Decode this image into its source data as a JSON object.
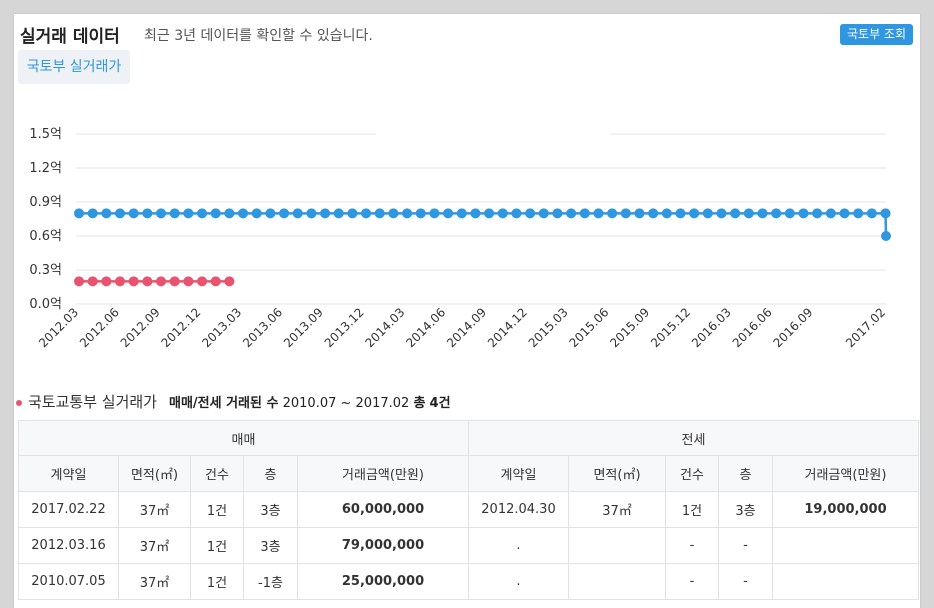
{
  "header": {
    "title": "실거래 데이터",
    "subtitle": "최근 3년 데이터를 확인할 수 있습니다.",
    "lookup_button": "국토부 조회",
    "tab_label": "국토부 실거래가"
  },
  "colors": {
    "sale": "#2f97e0",
    "jeonse": "#e8546f",
    "accent": "#2f97e0"
  },
  "chart_data": {
    "type": "line",
    "title": "",
    "xlabel": "",
    "ylabel": "",
    "yticks": [
      "0.0억",
      "0.3억",
      "0.6억",
      "0.9억",
      "1.2억",
      "1.5억"
    ],
    "ylim": [
      0,
      1.5
    ],
    "xticks": [
      "2012.03",
      "2012.06",
      "2012.09",
      "2012.12",
      "2013.03",
      "2013.06",
      "2013.09",
      "2013.12",
      "2014.03",
      "2014.06",
      "2014.09",
      "2014.12",
      "2015.03",
      "2015.06",
      "2015.09",
      "2015.12",
      "2016.03",
      "2016.06",
      "2016.09",
      "2017.02"
    ],
    "grid": true,
    "series": [
      {
        "key": "sale",
        "count": 60,
        "value": 0.8,
        "last_value": 0.6
      },
      {
        "key": "jeonse",
        "count": 12,
        "value": 0.2
      }
    ]
  },
  "summary": {
    "source_label": "국토교통부 실거래가",
    "heading": "매매/전세 거래된 수",
    "period": "2010.07 ~ 2017.02",
    "total_label": "총",
    "total_count": "4건"
  },
  "table": {
    "group_sale": "매매",
    "group_jeonse": "전세",
    "columns": [
      "계약일",
      "면적(㎡)",
      "건수",
      "층",
      "거래금액(만원)"
    ],
    "rows": [
      {
        "sale": [
          "2017.02.22",
          "37㎡",
          "1건",
          "3층",
          "60,000,000"
        ],
        "jeonse": [
          "2012.04.30",
          "37㎡",
          "1건",
          "3층",
          "19,000,000"
        ]
      },
      {
        "sale": [
          "2012.03.16",
          "37㎡",
          "1건",
          "3층",
          "79,000,000"
        ],
        "jeonse": [
          ".",
          "",
          "-",
          "-",
          ""
        ]
      },
      {
        "sale": [
          "2010.07.05",
          "37㎡",
          "1건",
          "-1층",
          "25,000,000"
        ],
        "jeonse": [
          ".",
          "",
          "-",
          "-",
          ""
        ]
      }
    ]
  }
}
